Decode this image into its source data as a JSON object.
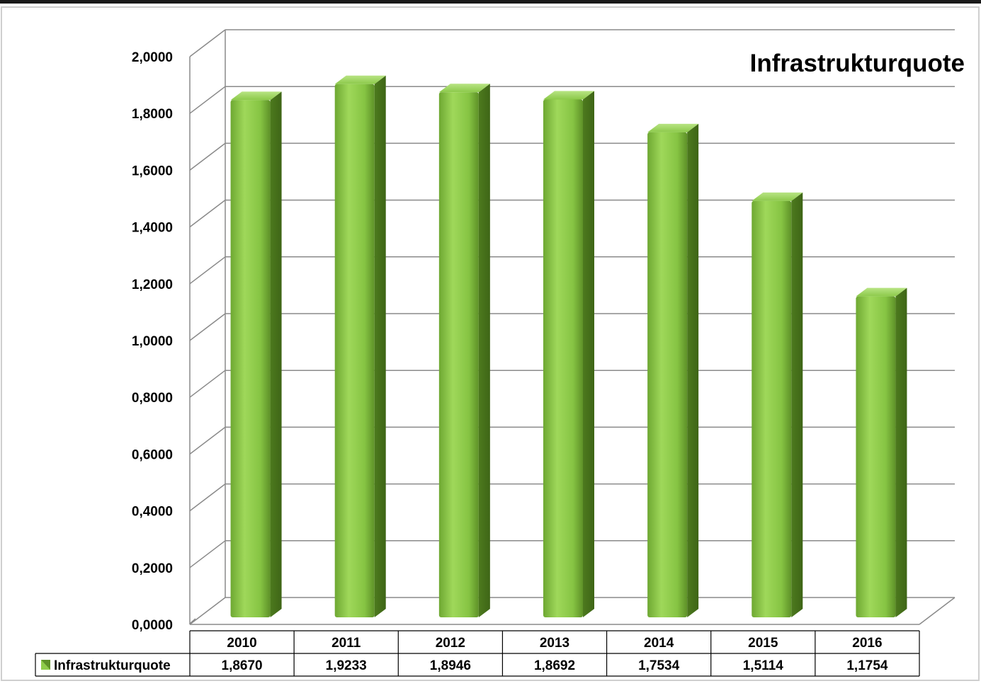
{
  "chart_data": {
    "type": "bar",
    "title": "Infrastrukturquote",
    "categories": [
      "2010",
      "2011",
      "2012",
      "2013",
      "2014",
      "2015",
      "2016"
    ],
    "series": [
      {
        "name": "Infrastrukturquote",
        "values": [
          1.867,
          1.9233,
          1.8946,
          1.8692,
          1.7534,
          1.5114,
          1.1754
        ]
      }
    ],
    "value_labels": [
      "1,8670",
      "1,9233",
      "1,8946",
      "1,8692",
      "1,7534",
      "1,5114",
      "1,1754"
    ],
    "y_ticks": [
      "0,0000",
      "0,2000",
      "0,4000",
      "0,6000",
      "0,8000",
      "1,0000",
      "1,2000",
      "1,4000",
      "1,6000",
      "1,8000",
      "2,0000"
    ],
    "ylim": [
      0,
      2
    ],
    "xlabel": "",
    "ylabel": "",
    "grid": true,
    "legend": "data-table",
    "colors": {
      "bar": "#8fcc4a",
      "bar_dark": "#5e9128",
      "bar_light": "#b3e07a",
      "frame": "#1a1a1a"
    }
  }
}
